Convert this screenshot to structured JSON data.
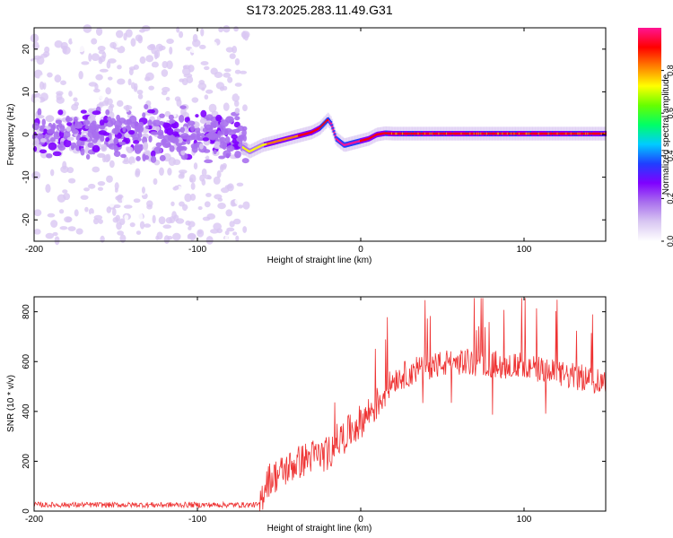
{
  "title": "S173.2025.283.11.49.G31",
  "colors": {
    "snr_line": "#ee3333",
    "colormap": [
      "#ffffff",
      "#d9c7f2",
      "#a970ee",
      "#7f00ff",
      "#1f3fff",
      "#00ccff",
      "#00ff66",
      "#66ff00",
      "#ffff00",
      "#ff8000",
      "#ff0000",
      "#ff1493"
    ]
  },
  "chart_data": [
    {
      "type": "heatmap",
      "name": "spectrogram",
      "xlabel": "Height of straight line (km)",
      "ylabel": "Frequency (Hz)",
      "xlim": [
        -200,
        150
      ],
      "ylim": [
        -25,
        25
      ],
      "xticks": [
        "-200",
        "-100",
        "0",
        "100"
      ],
      "yticks": [
        "20",
        "10",
        "0",
        "-10",
        "-20"
      ],
      "colorbar": {
        "label": "Normalized spectral amplitude",
        "range": [
          0,
          1
        ],
        "ticks": [
          "0.0",
          "0.2",
          "0.4",
          "0.6",
          "0.8"
        ]
      },
      "noise_region_x": [
        -200,
        -70
      ],
      "signal_track": {
        "x": [
          -72,
          -68,
          -60,
          -50,
          -40,
          -30,
          -25,
          -20,
          -18,
          -15,
          -10,
          -5,
          0,
          5,
          10,
          15,
          20,
          60,
          100,
          150
        ],
        "y": [
          -3,
          -4,
          -2.5,
          -1.5,
          -0.5,
          0.5,
          1.5,
          3.5,
          2.5,
          -1,
          -2.5,
          -2,
          -1.5,
          -1,
          0,
          0.3,
          0.2,
          0.2,
          0.2,
          0.2
        ]
      }
    },
    {
      "type": "line",
      "name": "snr",
      "xlabel": "Height of straight line (km)",
      "ylabel": "SNR (10 * v/v)",
      "xlim": [
        -200,
        150
      ],
      "ylim": [
        0,
        860
      ],
      "xticks": [
        "-200",
        "-100",
        "0",
        "100"
      ],
      "yticks": [
        "0",
        "200",
        "400",
        "600",
        "800"
      ],
      "series": [
        {
          "name": "SNR",
          "trend_x": [
            -200,
            -100,
            -62,
            -58,
            -50,
            -40,
            -30,
            -20,
            -15,
            -10,
            0,
            10,
            20,
            40,
            60,
            80,
            100,
            120,
            140,
            150
          ],
          "trend_y": [
            20,
            20,
            20,
            120,
            150,
            190,
            220,
            230,
            280,
            300,
            360,
            430,
            530,
            580,
            600,
            590,
            580,
            550,
            530,
            520
          ]
        }
      ]
    }
  ]
}
